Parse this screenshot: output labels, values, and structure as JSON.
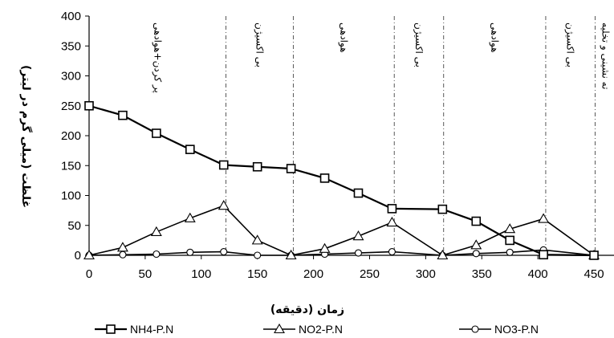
{
  "chart_data": {
    "type": "line",
    "xlabel": "زمان (دقیقه)",
    "ylabel": "غلظت (میلی گرم در لیتر)",
    "xlim": [
      0,
      470
    ],
    "ylim": [
      0,
      400
    ],
    "xticks": [
      0,
      50,
      100,
      150,
      200,
      250,
      300,
      350,
      400,
      450
    ],
    "yticks": [
      0,
      50,
      100,
      150,
      200,
      250,
      300,
      350,
      400
    ],
    "grid": false,
    "legend_position": "bottom",
    "phase_boundaries": [
      122,
      182,
      272,
      316,
      407,
      451
    ],
    "phases": [
      {
        "label": "پر کردن+هوادهی",
        "start": 0,
        "end": 122
      },
      {
        "label": "بی اکسیژن",
        "start": 122,
        "end": 182
      },
      {
        "label": "هوادهی",
        "start": 182,
        "end": 272
      },
      {
        "label": "بی اکسیژن",
        "start": 272,
        "end": 316
      },
      {
        "label": "هوادهی",
        "start": 316,
        "end": 407
      },
      {
        "label": "بی اکسیژن",
        "start": 407,
        "end": 451
      },
      {
        "label": "ته نشینی و تخلیه",
        "start": 451,
        "end": 470
      }
    ],
    "series": [
      {
        "name": "NH4-P.N",
        "marker": "square",
        "x": [
          0,
          30,
          60,
          90,
          120,
          150,
          180,
          210,
          240,
          270,
          315,
          345,
          375,
          405,
          450
        ],
        "y": [
          250,
          234,
          204,
          177,
          151,
          148,
          145,
          129,
          104,
          78,
          77,
          57,
          25,
          1,
          0
        ]
      },
      {
        "name": "NO2-P.N",
        "marker": "triangle",
        "x": [
          0,
          30,
          60,
          90,
          120,
          150,
          180,
          210,
          240,
          270,
          315,
          345,
          375,
          405,
          450
        ],
        "y": [
          0,
          13,
          39,
          62,
          83,
          25,
          0,
          11,
          32,
          55,
          0,
          17,
          44,
          61,
          0
        ]
      },
      {
        "name": "NO3-P.N",
        "marker": "circle",
        "x": [
          0,
          30,
          60,
          90,
          120,
          150,
          180,
          210,
          240,
          270,
          315,
          345,
          375,
          405,
          450
        ],
        "y": [
          0,
          1,
          2,
          5,
          6,
          0,
          0,
          2,
          4,
          6,
          0,
          3,
          5,
          9,
          0
        ]
      }
    ]
  }
}
